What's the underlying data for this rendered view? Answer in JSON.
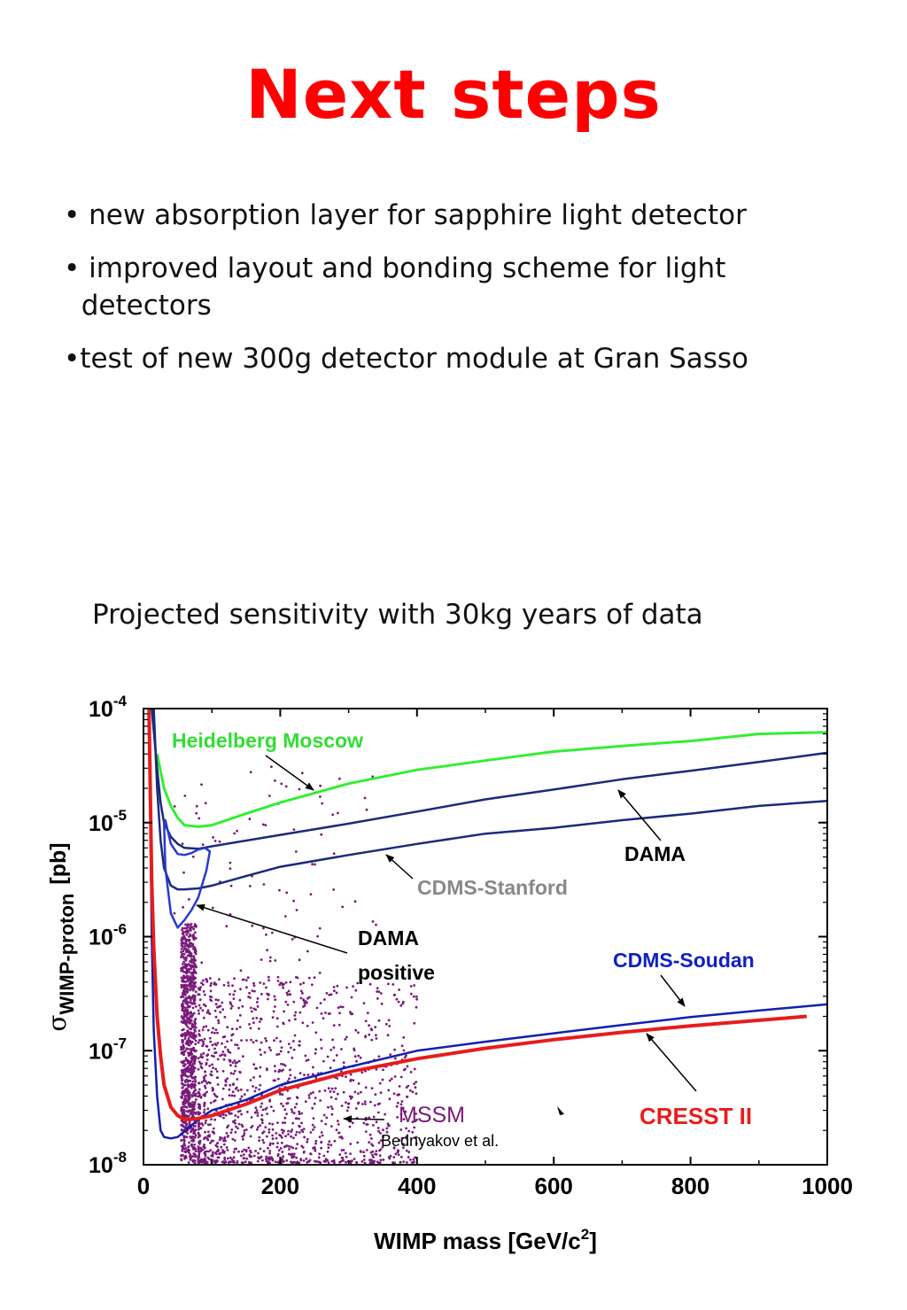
{
  "slide": {
    "title": "Next steps",
    "bullets": [
      "• new absorption layer for sapphire light detector",
      "• improved layout and bonding scheme for light\n  detectors",
      "•test of new 300g detector module at Gran Sasso"
    ],
    "subtitle": "Projected sensitivity with 30kg years of data"
  },
  "chart_data": {
    "type": "line",
    "xlabel": "WIMP mass [GeV/c",
    "xlabel_sup": "2",
    "xlabel_close": "]",
    "ylabel_sigma": "σ",
    "ylabel_sub": "WIMP-proton",
    "ylabel_unit": "[pb]",
    "xlim": [
      0,
      1000
    ],
    "ylim": [
      1e-08,
      0.0001
    ],
    "yscale": "log",
    "xticks": [
      0,
      200,
      400,
      600,
      800,
      1000
    ],
    "xtick_labels": [
      "0",
      "200",
      "400",
      "600",
      "800",
      "1000"
    ],
    "yticks": [
      -4,
      -5,
      -6,
      -7,
      -8
    ],
    "ytick_base": "10",
    "ytick_exponents": [
      "-4",
      "-5",
      "-6",
      "-7",
      "-8"
    ],
    "series": [
      {
        "key": "hm",
        "color": "#33ee33",
        "x": [
          20,
          30,
          40,
          50,
          60,
          80,
          100,
          150,
          200,
          300,
          400,
          500,
          600,
          700,
          800,
          900,
          1000
        ],
        "y": [
          4e-05,
          2e-05,
          1.4e-05,
          1.1e-05,
          9.5e-06,
          9.2e-06,
          9.5e-06,
          1.2e-05,
          1.5e-05,
          2.2e-05,
          2.9e-05,
          3.5e-05,
          4.2e-05,
          4.7e-05,
          5.2e-05,
          6e-05,
          6.2e-05
        ]
      },
      {
        "key": "dama_upper",
        "color": "#1a2a7a",
        "x": [
          12,
          20,
          25,
          30,
          40,
          50,
          60,
          80,
          100,
          200,
          300,
          400,
          500,
          600,
          700,
          800,
          900,
          1000
        ],
        "y": [
          0.0001,
          3e-05,
          1.5e-05,
          1e-05,
          7.5e-06,
          6.5e-06,
          6e-06,
          5.9e-06,
          6.2e-06,
          7.8e-06,
          9.8e-06,
          1.25e-05,
          1.6e-05,
          1.95e-05,
          2.4e-05,
          2.85e-05,
          3.4e-05,
          4.1e-05
        ]
      },
      {
        "key": "cdms_stanford",
        "color": "#1a2a7a",
        "x": [
          15,
          20,
          25,
          30,
          40,
          50,
          60,
          80,
          100,
          150,
          200,
          300,
          400,
          500,
          600,
          700,
          800,
          900,
          1000
        ],
        "y": [
          0.0001,
          2e-05,
          7e-06,
          4e-06,
          2.8e-06,
          2.6e-06,
          2.6e-06,
          2.65e-06,
          2.8e-06,
          3.4e-06,
          4.1e-06,
          5.2e-06,
          6.5e-06,
          8e-06,
          9e-06,
          1.05e-05,
          1.2e-05,
          1.4e-05,
          1.55e-05
        ]
      },
      {
        "key": "dama_positive",
        "color": "#2a3acc",
        "x": [
          30,
          32,
          40,
          50,
          60,
          70,
          80,
          90,
          97,
          92,
          80,
          70,
          60,
          50,
          40,
          32,
          30
        ],
        "y": [
          1e-05,
          1.05e-05,
          6.5e-06,
          5.3e-06,
          5.2e-06,
          5.4e-06,
          5.8e-06,
          6e-06,
          5.6e-06,
          3.8e-06,
          2.2e-06,
          1.7e-06,
          1.4e-06,
          1.2e-06,
          1.6e-06,
          4e-06,
          1e-05
        ]
      },
      {
        "key": "cdms_soudan",
        "color": "#1020b0",
        "x": [
          8,
          12,
          15,
          20,
          25,
          30,
          40,
          50,
          60,
          80,
          100,
          150,
          200,
          300,
          400,
          500,
          600,
          700,
          800,
          900,
          1000
        ],
        "y": [
          0.0001,
          1e-06,
          1.5e-07,
          4e-08,
          2e-08,
          1.75e-08,
          1.7e-08,
          1.75e-08,
          1.95e-08,
          2.5e-08,
          3e-08,
          3.7e-08,
          5e-08,
          7.2e-08,
          1e-07,
          1.2e-07,
          1.42e-07,
          1.68e-07,
          1.97e-07,
          2.25e-07,
          2.55e-07
        ]
      },
      {
        "key": "cresst",
        "color": "#e81c1c",
        "x": [
          8,
          12,
          15,
          20,
          25,
          30,
          40,
          50,
          60,
          70,
          80,
          100,
          150,
          200,
          300,
          400,
          500,
          600,
          700,
          800,
          900,
          970
        ],
        "y": [
          0.0001,
          3e-06,
          8e-07,
          2e-07,
          9e-08,
          5e-08,
          3.2e-08,
          2.7e-08,
          2.5e-08,
          2.5e-08,
          2.55e-08,
          2.7e-08,
          3.4e-08,
          4.5e-08,
          6.5e-08,
          8.5e-08,
          1.05e-07,
          1.25e-07,
          1.45e-07,
          1.65e-07,
          1.85e-07,
          2e-07
        ]
      }
    ],
    "scatter": {
      "name": "MSSM",
      "color": "#7a1a7a"
    },
    "annotations": {
      "hm": {
        "text": "Heidelberg Moscow",
        "color": "#33dd33"
      },
      "dama": {
        "text": "DAMA",
        "color": "#000000"
      },
      "cdms_stanford": {
        "text": "CDMS-Stanford",
        "color": "#888888"
      },
      "dama_positive_1": {
        "text": "DAMA",
        "color": "#000000"
      },
      "dama_positive_2": {
        "text": "positive",
        "color": "#000000"
      },
      "cdms_soudan": {
        "text": "CDMS-Soudan",
        "color": "#1020c0"
      },
      "mssm": {
        "text": "MSSM",
        "color": "#7a1a7a"
      },
      "bednyakov": {
        "text": "Bednyakov et al.",
        "color": "#000000"
      },
      "cresst": {
        "text": "CRESST II",
        "color": "#e81c1c"
      }
    }
  }
}
